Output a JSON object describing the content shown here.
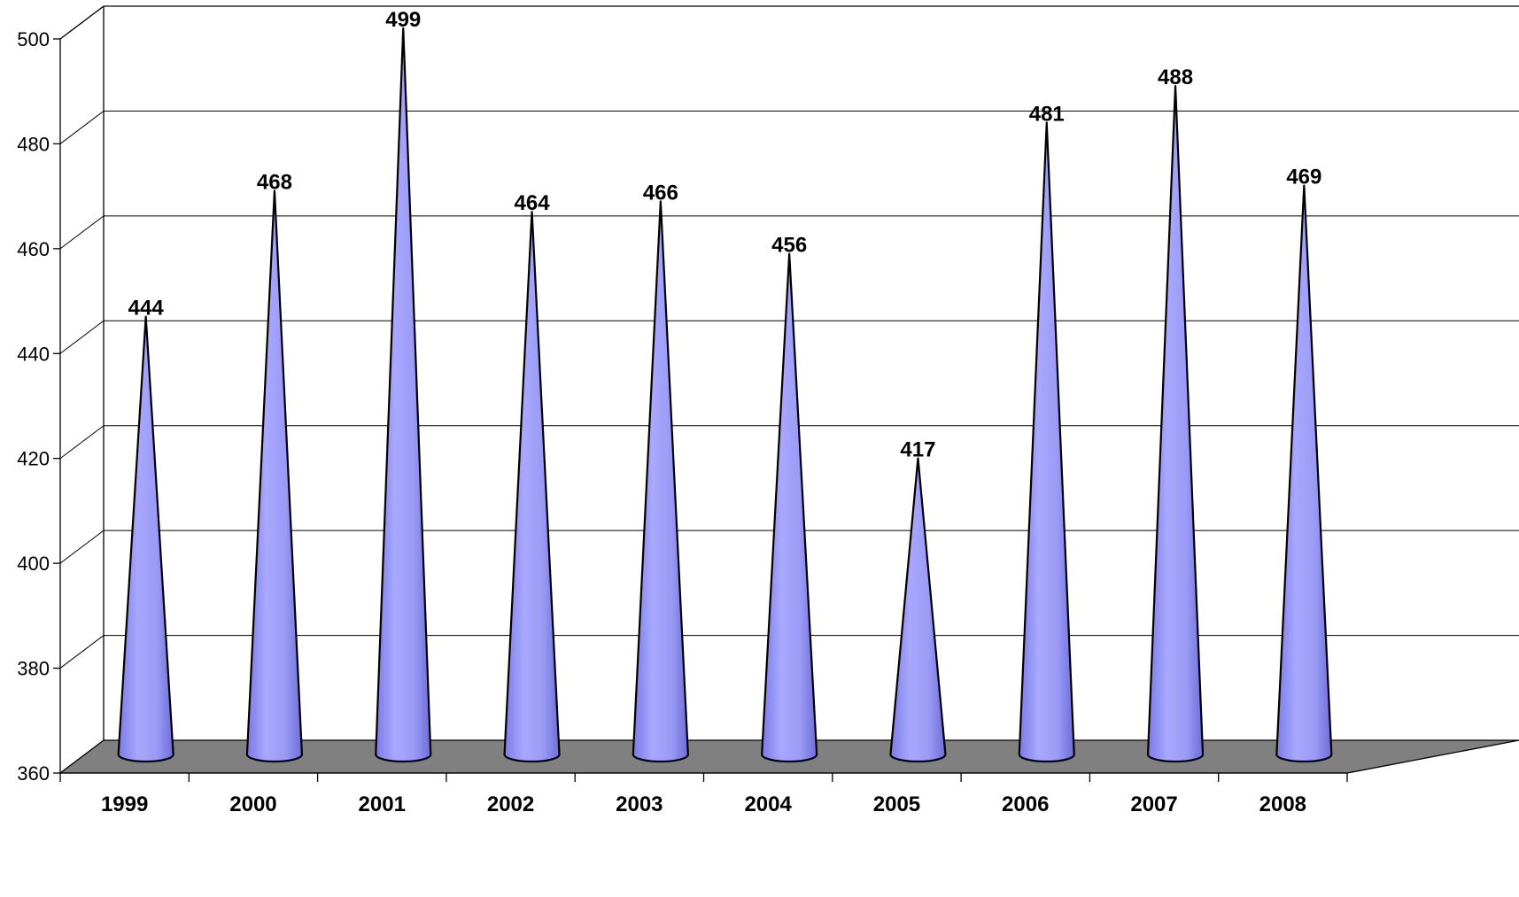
{
  "chart_data": {
    "type": "bar",
    "categories": [
      "1999",
      "2000",
      "2001",
      "2002",
      "2003",
      "2004",
      "2005",
      "2006",
      "2007",
      "2008"
    ],
    "values": [
      444,
      468,
      499,
      464,
      466,
      456,
      417,
      481,
      488,
      469
    ],
    "data_labels": [
      "444",
      "468",
      "499",
      "464",
      "466",
      "456",
      "417",
      "481",
      "488",
      "469"
    ],
    "ylim": [
      360,
      500
    ],
    "y_ticks": [
      360,
      380,
      400,
      420,
      440,
      460,
      480,
      500
    ],
    "y_tick_labels": [
      "360",
      "380",
      "400",
      "420",
      "440",
      "460",
      "480",
      "500"
    ],
    "bar_shape": "cone",
    "grid": true,
    "legend": "none",
    "colors": {
      "cone_fill": "#9999ff",
      "cone_outline": "#000000",
      "floor": "#808080",
      "gridline": "#000000"
    }
  }
}
